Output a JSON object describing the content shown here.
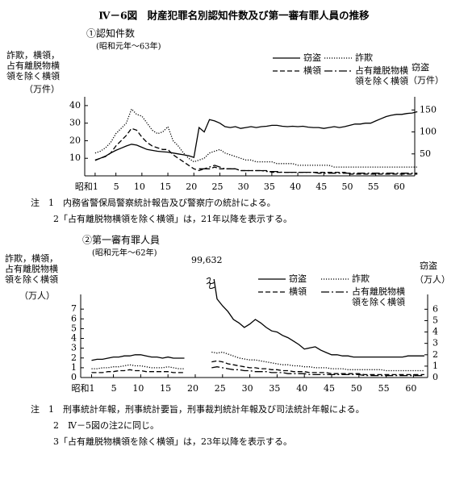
{
  "title": "Ⅳ－6図　財産犯罪名別認知件数及び第一審有罪人員の推移",
  "chart_data": [
    {
      "type": "line",
      "title": "①認知件数",
      "subtitle": "(昭和元年～63年)",
      "y_label": "詐欺，横領，占有離脱物横領を除く横領",
      "y_unit": "（万件）",
      "y2_label": "窃盗",
      "y2_unit": "（万件）",
      "x": [
        1,
        2,
        3,
        4,
        5,
        6,
        7,
        8,
        9,
        10,
        11,
        12,
        13,
        14,
        15,
        16,
        17,
        18,
        19,
        20,
        21,
        22,
        23,
        24,
        25,
        26,
        27,
        28,
        29,
        30,
        31,
        32,
        33,
        34,
        35,
        36,
        37,
        38,
        39,
        40,
        41,
        42,
        43,
        44,
        45,
        46,
        47,
        48,
        49,
        50,
        51,
        52,
        53,
        54,
        55,
        56,
        57,
        58,
        59,
        60,
        61,
        62,
        63
      ],
      "xlim": [
        -1,
        62.5
      ],
      "xticks": [
        {
          "value": 1,
          "label": "昭和1"
        },
        5,
        10,
        15,
        20,
        25,
        30,
        35,
        40,
        45,
        50,
        55,
        60
      ],
      "ylim": [
        0,
        45
      ],
      "yticks": [
        10,
        20,
        30,
        40
      ],
      "y2lim": [
        0,
        180
      ],
      "y2ticks": [
        50,
        100,
        150
      ],
      "series": [
        {
          "name": "窃盗",
          "color": "#000000",
          "style": "solid",
          "axis": "y2",
          "values": [
            35,
            40,
            45,
            52,
            58,
            63,
            68,
            72,
            70,
            65,
            60,
            58,
            56,
            55,
            54,
            52,
            50,
            48,
            46,
            42,
            110,
            100,
            128,
            125,
            120,
            112,
            110,
            112,
            108,
            110,
            112,
            110,
            112,
            113,
            115,
            115,
            113,
            112,
            113,
            112,
            113,
            111,
            110,
            110,
            108,
            110,
            112,
            110,
            112,
            115,
            118,
            118,
            120,
            120,
            125,
            130,
            135,
            138,
            140,
            140,
            142,
            143,
            146
          ]
        },
        {
          "name": "詐欺",
          "color": "#000000",
          "style": "dotted",
          "values": [
            13,
            14,
            16,
            19,
            24,
            27,
            30,
            38,
            35,
            34,
            30,
            26,
            24,
            25,
            28,
            20,
            17,
            13,
            10,
            8,
            9,
            10,
            13,
            14,
            15,
            13,
            12,
            11,
            10,
            9,
            9,
            8,
            8,
            8,
            8,
            7,
            7,
            7,
            7,
            6,
            6,
            6,
            6,
            6,
            6,
            6,
            5,
            5,
            5,
            5,
            5,
            5,
            5,
            5,
            5,
            5,
            5,
            5,
            5,
            5,
            5,
            5,
            5
          ]
        },
        {
          "name": "横領",
          "color": "#000000",
          "style": "dashed",
          "values": [
            9,
            10,
            11,
            13,
            17,
            20,
            23,
            27,
            26,
            22,
            19,
            17,
            16,
            15,
            15,
            12,
            10,
            8,
            6,
            4,
            3,
            4,
            4,
            5,
            4,
            4,
            4,
            4,
            3,
            3,
            3,
            3,
            3,
            3,
            2,
            2,
            2,
            2,
            2,
            2,
            2,
            2,
            2,
            2,
            2,
            2,
            2,
            2,
            2,
            1,
            1,
            1,
            1,
            1,
            1,
            1,
            1,
            1,
            1,
            1,
            1,
            1,
            1
          ]
        },
        {
          "name": "占有離脱物横領を除く横領",
          "color": "#000000",
          "style": "dashdot",
          "values": [
            null,
            null,
            null,
            null,
            null,
            null,
            null,
            null,
            null,
            null,
            null,
            null,
            null,
            null,
            null,
            null,
            null,
            null,
            null,
            null,
            4,
            4,
            5,
            6,
            5,
            4,
            4,
            4,
            3,
            3,
            3,
            3,
            3,
            2.5,
            2.5,
            2.5,
            2,
            2,
            2,
            2,
            2,
            2,
            2,
            1.5,
            1.5,
            1.5,
            1.5,
            1.5,
            1.5,
            1.5,
            1.5,
            1.5,
            1.5,
            1.5,
            1.5,
            1.5,
            1.5,
            1.5,
            1.5,
            1.5,
            1.5,
            1.5,
            1.5
          ]
        }
      ],
      "notes": [
        "注　1　内務省警保局警察統計報告及び警察庁の統計による。",
        "2「占有離脱物横領を除く横領」は，21年以降を表示する。"
      ]
    },
    {
      "type": "line",
      "title": "②第一審有罪人員",
      "subtitle": "(昭和元年～62年)",
      "y_label": "詐欺，横領，占有離脱物横領を除く横領",
      "y_unit": "（万人）",
      "y2_label": "窃盗",
      "y2_unit": "（万人）",
      "x": [
        1,
        2,
        3,
        4,
        5,
        6,
        7,
        8,
        9,
        10,
        11,
        12,
        13,
        14,
        15,
        16,
        17,
        18,
        19,
        20,
        21,
        22,
        23,
        24,
        25,
        26,
        27,
        28,
        29,
        30,
        31,
        32,
        33,
        34,
        35,
        36,
        37,
        38,
        39,
        40,
        41,
        42,
        43,
        44,
        45,
        46,
        47,
        48,
        49,
        50,
        51,
        52,
        53,
        54,
        55,
        56,
        57,
        58,
        59,
        60,
        61,
        62
      ],
      "xlim": [
        -1,
        62.6
      ],
      "xticks": [
        {
          "value": 1,
          "label": "昭和1"
        },
        5,
        10,
        15,
        20,
        25,
        30,
        35,
        40,
        45,
        50,
        55,
        60
      ],
      "ylim": [
        0,
        8.5
      ],
      "yticks": [
        0,
        1,
        2,
        3,
        4,
        5,
        6,
        7
      ],
      "y2lim": [
        0,
        7.3
      ],
      "y2ticks": [
        0,
        1,
        2,
        3,
        4,
        5,
        6
      ],
      "series": [
        {
          "name": "窃盗",
          "color": "#000000",
          "style": "solid",
          "axis": "y2",
          "values": [
            1.5,
            1.6,
            1.6,
            1.7,
            1.8,
            1.8,
            1.9,
            1.9,
            2.0,
            2.0,
            1.9,
            1.8,
            1.8,
            1.7,
            1.8,
            1.7,
            1.7,
            1.7,
            null,
            null,
            null,
            null,
            9.9632,
            6.9,
            6.3,
            5.8,
            5.1,
            4.8,
            4.4,
            4.7,
            5.1,
            4.8,
            4.4,
            4.1,
            4.0,
            3.7,
            3.5,
            3.2,
            2.9,
            2.5,
            2.6,
            2.7,
            2.4,
            2.2,
            2.0,
            2.0,
            1.9,
            1.9,
            1.8,
            1.8,
            1.8,
            1.8,
            1.8,
            1.8,
            1.8,
            1.8,
            1.8,
            1.8,
            1.9,
            1.9,
            1.9,
            1.9
          ],
          "value_labels": [
            null,
            null,
            null,
            null,
            null,
            null,
            null,
            null,
            null,
            null,
            null,
            null,
            null,
            null,
            null,
            null,
            null,
            null,
            null,
            null,
            null,
            null,
            "99,632",
            null,
            null,
            null,
            null,
            null,
            null,
            null,
            null,
            null,
            null,
            null,
            null,
            null,
            null,
            null,
            null,
            null,
            null,
            null,
            null,
            null,
            null,
            null,
            null,
            null,
            null,
            null,
            null,
            null,
            null,
            null,
            null,
            null,
            null,
            null,
            null,
            null,
            null,
            null
          ]
        },
        {
          "name": "詐欺",
          "color": "#000000",
          "style": "dotted",
          "values": [
            0.9,
            0.9,
            1.0,
            1.0,
            1.1,
            1.1,
            1.2,
            1.3,
            1.2,
            1.2,
            1.1,
            1.0,
            1.0,
            1.0,
            1.1,
            1.0,
            0.9,
            0.9,
            null,
            null,
            null,
            null,
            2.6,
            2.5,
            2.6,
            2.4,
            2.2,
            2.0,
            1.9,
            1.8,
            1.8,
            1.7,
            1.6,
            1.5,
            1.4,
            1.3,
            1.3,
            1.2,
            1.2,
            1.1,
            1.1,
            1.0,
            1.0,
            1.0,
            0.9,
            0.9,
            0.9,
            0.8,
            0.8,
            0.8,
            0.8,
            0.8,
            0.8,
            0.8,
            0.7,
            0.7,
            0.7,
            0.7,
            0.7,
            0.7,
            0.7,
            0.7
          ]
        },
        {
          "name": "横領",
          "color": "#000000",
          "style": "dashed",
          "values": [
            0.5,
            0.5,
            0.5,
            0.6,
            0.6,
            0.7,
            0.7,
            0.8,
            0.7,
            0.7,
            0.6,
            0.6,
            0.6,
            0.6,
            0.6,
            0.5,
            0.5,
            0.5,
            null,
            null,
            null,
            null,
            1.6,
            1.7,
            1.6,
            1.4,
            1.3,
            1.2,
            1.1,
            1.0,
            1.0,
            0.9,
            0.9,
            0.8,
            0.8,
            0.7,
            0.7,
            0.6,
            0.6,
            0.6,
            0.5,
            0.5,
            0.5,
            0.5,
            0.4,
            0.4,
            0.4,
            0.4,
            0.4,
            0.4,
            0.3,
            0.3,
            0.3,
            0.3,
            0.3,
            0.3,
            0.3,
            0.3,
            0.3,
            0.3,
            0.3,
            0.3
          ]
        },
        {
          "name": "占有離脱物横領を除く横領",
          "color": "#000000",
          "style": "dashdot",
          "values": [
            null,
            null,
            null,
            null,
            null,
            null,
            null,
            null,
            null,
            null,
            null,
            null,
            null,
            null,
            null,
            null,
            null,
            null,
            null,
            null,
            null,
            null,
            1.0,
            1.1,
            1.0,
            0.9,
            0.8,
            0.8,
            0.7,
            0.7,
            0.6,
            0.6,
            0.6,
            0.5,
            0.5,
            0.5,
            0.4,
            0.4,
            0.4,
            0.4,
            0.3,
            0.3,
            0.3,
            0.3,
            0.3,
            0.3,
            0.3,
            0.3,
            0.3,
            0.3,
            0.2,
            0.2,
            0.2,
            0.2,
            0.2,
            0.2,
            0.2,
            0.2,
            0.2,
            0.2,
            0.2,
            0.2
          ]
        }
      ],
      "notes": [
        "注　1　刑事統計年報，刑事統計要旨，刑事裁判統計年報及び司法統計年報による。",
        "2　Ⅳ－5図の注2に同じ。",
        "3「占有離脱物横領を除く横領」は，23年以降を表示する。"
      ]
    }
  ]
}
